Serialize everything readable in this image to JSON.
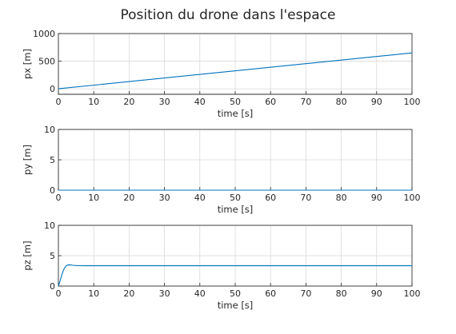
{
  "figure": {
    "title": "Position du drone dans l'espace"
  },
  "colors": {
    "series": "#0072BD",
    "axes": "#262626",
    "grid": "#d9d9d9"
  },
  "chart_data": [
    {
      "type": "line",
      "name": "px",
      "xlabel": "time [s]",
      "ylabel": "px [m]",
      "xlim": [
        0,
        100
      ],
      "ylim": [
        -100,
        1000
      ],
      "xticks": [
        0,
        10,
        20,
        30,
        40,
        50,
        60,
        70,
        80,
        90,
        100
      ],
      "yticks": [
        0,
        500,
        1000
      ],
      "grid": true,
      "x": [
        0,
        100
      ],
      "y": [
        0,
        650
      ]
    },
    {
      "type": "line",
      "name": "py",
      "xlabel": "time [s]",
      "ylabel": "py [m]",
      "xlim": [
        0,
        100
      ],
      "ylim": [
        0,
        10
      ],
      "xticks": [
        0,
        10,
        20,
        30,
        40,
        50,
        60,
        70,
        80,
        90,
        100
      ],
      "yticks": [
        0,
        5,
        10
      ],
      "grid": true,
      "x": [
        0,
        100
      ],
      "y": [
        0,
        0
      ]
    },
    {
      "type": "line",
      "name": "pz",
      "xlabel": "time [s]",
      "ylabel": "pz [m]",
      "xlim": [
        0,
        100
      ],
      "ylim": [
        0,
        10
      ],
      "xticks": [
        0,
        10,
        20,
        30,
        40,
        50,
        60,
        70,
        80,
        90,
        100
      ],
      "yticks": [
        0,
        5,
        10
      ],
      "grid": true,
      "x": [
        0,
        0.5,
        1,
        1.5,
        2,
        2.5,
        3,
        3.5,
        4,
        5,
        6,
        8,
        10,
        20,
        40,
        60,
        80,
        100
      ],
      "y": [
        0,
        0.9,
        1.9,
        2.7,
        3.2,
        3.45,
        3.5,
        3.48,
        3.42,
        3.38,
        3.36,
        3.35,
        3.35,
        3.35,
        3.35,
        3.35,
        3.35,
        3.35
      ]
    }
  ]
}
